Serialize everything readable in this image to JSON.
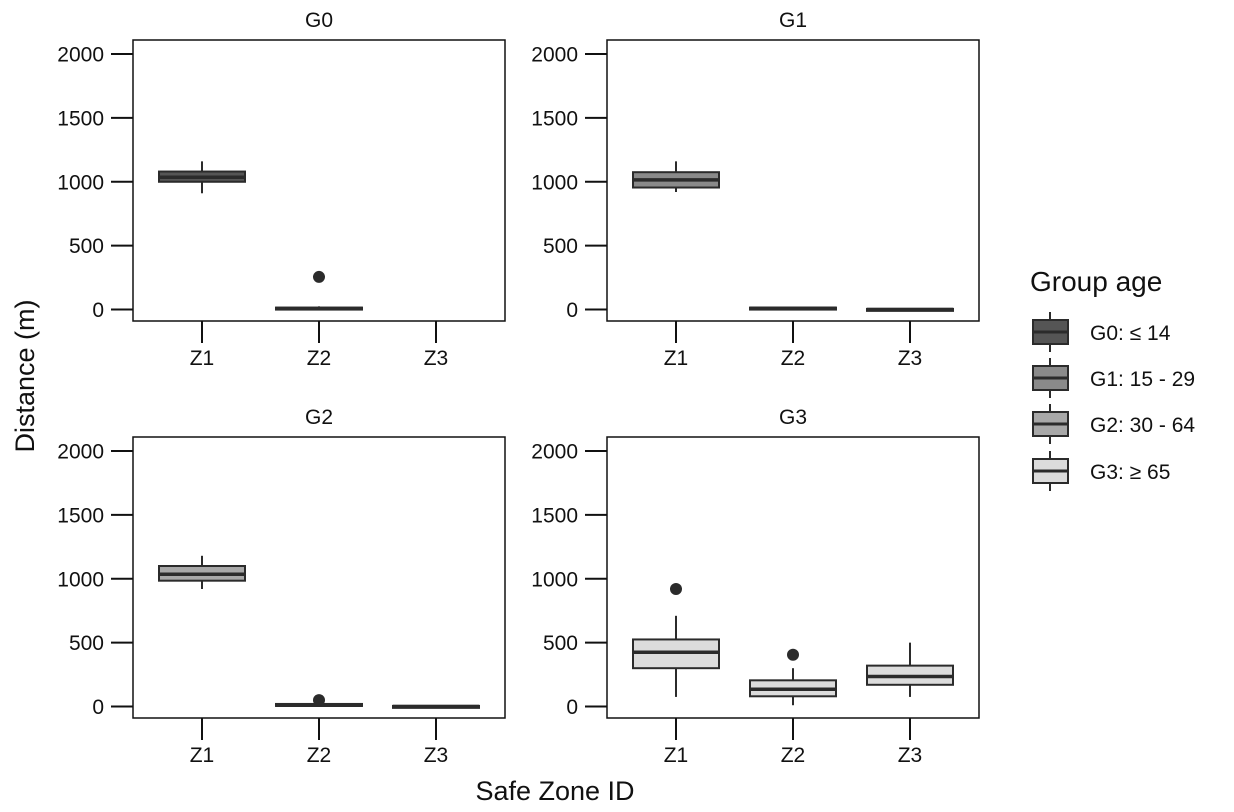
{
  "chart_data": {
    "type": "box",
    "x_label": "Safe Zone ID",
    "y_label": "Distance (m)",
    "categories": [
      "Z1",
      "Z2",
      "Z3"
    ],
    "y_ticks": [
      0,
      500,
      1000,
      1500,
      2000
    ],
    "ylim": [
      -90,
      2110
    ],
    "legend": {
      "title": "Group age",
      "position": "right",
      "items": [
        {
          "key": "G0",
          "label": "G0: ≤ 14",
          "color": "#555555"
        },
        {
          "key": "G1",
          "label": "G1: 15 - 29",
          "color": "#8a8a8a"
        },
        {
          "key": "G2",
          "label": "G2: 30 - 64",
          "color": "#a8a8a8"
        },
        {
          "key": "G3",
          "label": "G3: ≥ 65",
          "color": "#dcdcdc"
        }
      ]
    },
    "panels": [
      {
        "title": "G0",
        "group": "G0",
        "boxes": [
          {
            "category": "Z1",
            "min": 910,
            "q1": 1000,
            "median": 1035,
            "q3": 1080,
            "max": 1160,
            "outliers": []
          },
          {
            "category": "Z2",
            "min": 0,
            "q1": 2,
            "median": 8,
            "q3": 15,
            "max": 25,
            "outliers": [
              255
            ]
          }
        ]
      },
      {
        "title": "G1",
        "group": "G1",
        "boxes": [
          {
            "category": "Z1",
            "min": 920,
            "q1": 955,
            "median": 1015,
            "q3": 1075,
            "max": 1160,
            "outliers": []
          },
          {
            "category": "Z2",
            "min": 0,
            "q1": 5,
            "median": 10,
            "q3": 15,
            "max": 20,
            "outliers": []
          },
          {
            "category": "Z3",
            "min": -10,
            "q1": -5,
            "median": 0,
            "q3": 5,
            "max": 10,
            "outliers": []
          }
        ]
      },
      {
        "title": "G2",
        "group": "G2",
        "boxes": [
          {
            "category": "Z1",
            "min": 920,
            "q1": 985,
            "median": 1035,
            "q3": 1100,
            "max": 1180,
            "outliers": []
          },
          {
            "category": "Z2",
            "min": 0,
            "q1": 5,
            "median": 10,
            "q3": 20,
            "max": 30,
            "outliers": [
              50
            ]
          },
          {
            "category": "Z3",
            "min": -10,
            "q1": -5,
            "median": 0,
            "q3": 5,
            "max": 10,
            "outliers": []
          }
        ]
      },
      {
        "title": "G3",
        "group": "G3",
        "boxes": [
          {
            "category": "Z1",
            "min": 75,
            "q1": 300,
            "median": 425,
            "q3": 525,
            "max": 710,
            "outliers": [
              920
            ]
          },
          {
            "category": "Z2",
            "min": 10,
            "q1": 80,
            "median": 135,
            "q3": 205,
            "max": 300,
            "outliers": [
              405
            ]
          },
          {
            "category": "Z3",
            "min": 75,
            "q1": 170,
            "median": 235,
            "q3": 320,
            "max": 500,
            "outliers": []
          }
        ]
      }
    ]
  }
}
